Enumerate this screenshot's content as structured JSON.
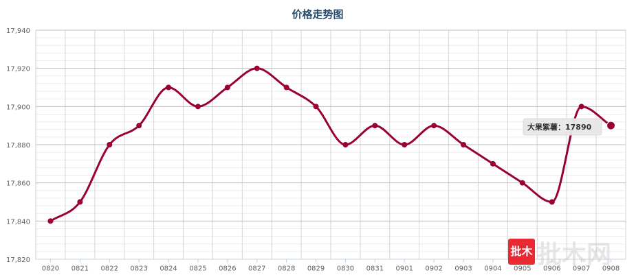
{
  "chart_data": {
    "type": "line",
    "title": "价格走势图",
    "categories": [
      "0820",
      "0821",
      "0822",
      "0823",
      "0824",
      "0825",
      "0826",
      "0827",
      "0828",
      "0829",
      "0830",
      "0831",
      "0901",
      "0902",
      "0903",
      "0904",
      "0905",
      "0906",
      "0907",
      "0908"
    ],
    "series": [
      {
        "name": "大果紫薯",
        "color": "#990033",
        "values": [
          17840,
          17850,
          17880,
          17890,
          17910,
          17900,
          17910,
          17920,
          17910,
          17900,
          17880,
          17890,
          17880,
          17890,
          17880,
          17870,
          17860,
          17850,
          17900,
          17890
        ]
      }
    ],
    "ylim": [
      17820,
      17940
    ],
    "yticks": [
      17820,
      17840,
      17860,
      17880,
      17900,
      17920,
      17940
    ],
    "ytick_labels": [
      "17,820",
      "17,840",
      "17,860",
      "17,880",
      "17,900",
      "17,920",
      "17,940"
    ],
    "xlabel": "",
    "ylabel": "",
    "grid": true,
    "tooltip": {
      "label": "大果紫薯：",
      "value": "17890",
      "category": "0908"
    }
  },
  "watermark": {
    "badge_text": "批木",
    "text": "批木网",
    "badge_color": "#e8141c",
    "text_color": "#cccccc"
  }
}
